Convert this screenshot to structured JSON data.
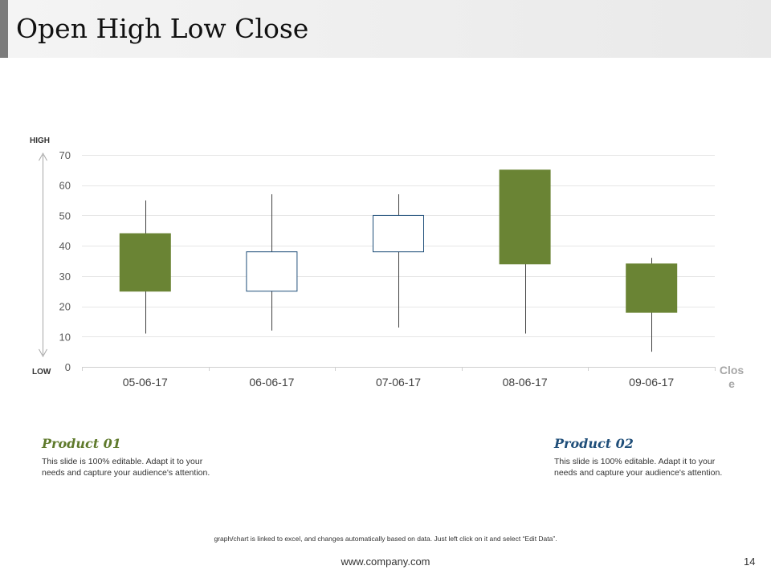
{
  "slide": {
    "title": "Open High Low Close",
    "footnote": "graph/chart is linked to excel, and changes automatically  based on data. Just left click on it and select “Edit Data”.",
    "website": "www.company.com",
    "page_number": "14"
  },
  "colors": {
    "increasing_box": "#ffffff",
    "increasing_border": "#1f4e79",
    "decreasing_box": "#6a8434",
    "wick": "#404040",
    "gridline": "#e6e6e6"
  },
  "chart_data": {
    "type": "candlestick",
    "title": "",
    "xlabel": "",
    "ylabel": "",
    "high_label": "HIGH",
    "low_label": "LOW",
    "legend_label": "Close",
    "ylim": [
      0,
      70
    ],
    "yticks": [
      0,
      10,
      20,
      30,
      40,
      50,
      60,
      70
    ],
    "categories": [
      "05-06-17",
      "06-06-17",
      "07-06-17",
      "08-06-17",
      "09-06-17"
    ],
    "open": [
      44,
      25,
      38,
      65,
      34
    ],
    "high": [
      55,
      57,
      57,
      65,
      36
    ],
    "low": [
      11,
      12,
      13,
      11,
      5
    ],
    "close": [
      25,
      38,
      50,
      34,
      18
    ]
  },
  "products": [
    {
      "title": "Product 01",
      "description": "This slide is 100% editable. Adapt it to your needs and capture your audience's attention."
    },
    {
      "title": "Product 02",
      "description": "This slide is 100% editable. Adapt it to your needs and capture your audience's attention."
    }
  ]
}
